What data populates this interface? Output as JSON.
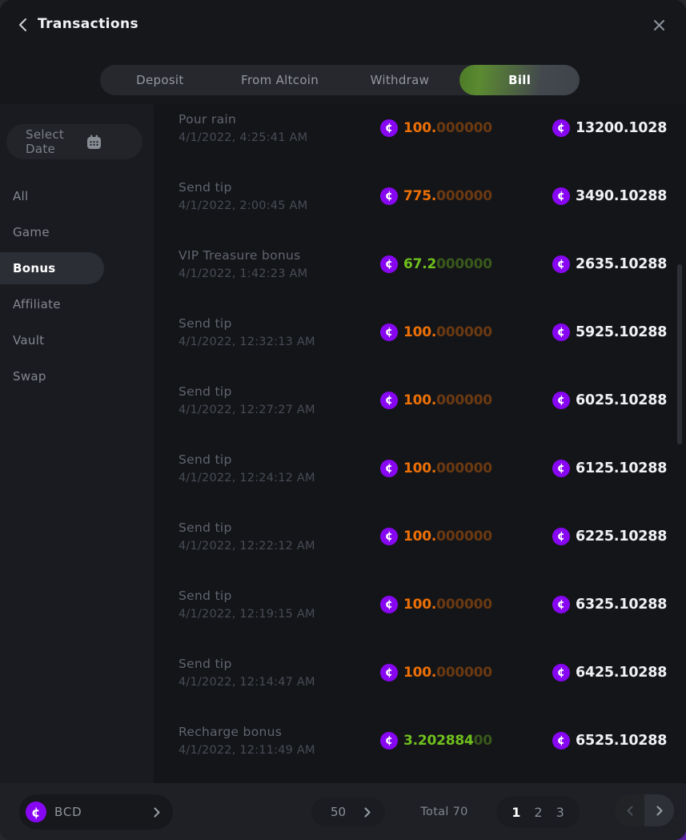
{
  "header": {
    "title": "Transactions"
  },
  "tabs": [
    {
      "label": "Deposit",
      "active": false
    },
    {
      "label": "From Altcoin",
      "active": false
    },
    {
      "label": "Withdraw",
      "active": false
    },
    {
      "label": "Bill",
      "active": true
    }
  ],
  "sidebar": {
    "date_filter": {
      "label": "Select Date",
      "icon": "calendar-icon"
    },
    "items": [
      {
        "label": "All",
        "active": false
      },
      {
        "label": "Game",
        "active": false
      },
      {
        "label": "Bonus",
        "active": true
      },
      {
        "label": "Affiliate",
        "active": false
      },
      {
        "label": "Vault",
        "active": false
      },
      {
        "label": "Swap",
        "active": false
      }
    ]
  },
  "transactions": [
    {
      "title": "Pour rain",
      "datetime": "4/1/2022, 4:25:41 AM",
      "amount_significant": "100.",
      "amount_padding": "000000",
      "amount_color": "orange",
      "balance": "13200.1028",
      "coin_icon": "bcd-coin-icon"
    },
    {
      "title": "Send tip",
      "datetime": "4/1/2022, 2:00:45 AM",
      "amount_significant": "775.",
      "amount_padding": "000000",
      "amount_color": "orange",
      "balance": "3490.10288",
      "coin_icon": "bcd-coin-icon"
    },
    {
      "title": "VIP Treasure bonus",
      "datetime": "4/1/2022, 1:42:23 AM",
      "amount_significant": "67.2",
      "amount_padding": "000000",
      "amount_color": "green",
      "balance": "2635.10288",
      "coin_icon": "bcd-coin-icon"
    },
    {
      "title": "Send tip",
      "datetime": "4/1/2022, 12:32:13 AM",
      "amount_significant": "100.",
      "amount_padding": "000000",
      "amount_color": "orange",
      "balance": "5925.10288",
      "coin_icon": "bcd-coin-icon"
    },
    {
      "title": "Send tip",
      "datetime": "4/1/2022, 12:27:27 AM",
      "amount_significant": "100.",
      "amount_padding": "000000",
      "amount_color": "orange",
      "balance": "6025.10288",
      "coin_icon": "bcd-coin-icon"
    },
    {
      "title": "Send tip",
      "datetime": "4/1/2022, 12:24:12 AM",
      "amount_significant": "100.",
      "amount_padding": "000000",
      "amount_color": "orange",
      "balance": "6125.10288",
      "coin_icon": "bcd-coin-icon"
    },
    {
      "title": "Send tip",
      "datetime": "4/1/2022, 12:22:12 AM",
      "amount_significant": "100.",
      "amount_padding": "000000",
      "amount_color": "orange",
      "balance": "6225.10288",
      "coin_icon": "bcd-coin-icon"
    },
    {
      "title": "Send tip",
      "datetime": "4/1/2022, 12:19:15 AM",
      "amount_significant": "100.",
      "amount_padding": "000000",
      "amount_color": "orange",
      "balance": "6325.10288",
      "coin_icon": "bcd-coin-icon"
    },
    {
      "title": "Send tip",
      "datetime": "4/1/2022, 12:14:47 AM",
      "amount_significant": "100.",
      "amount_padding": "000000",
      "amount_color": "orange",
      "balance": "6425.10288",
      "coin_icon": "bcd-coin-icon"
    },
    {
      "title": "Recharge bonus",
      "datetime": "4/1/2022, 12:11:49 AM",
      "amount_significant": "3.202884",
      "amount_padding": "00",
      "amount_color": "green",
      "balance": "6525.10288",
      "coin_icon": "bcd-coin-icon"
    }
  ],
  "footer": {
    "currency": {
      "code": "BCD",
      "icon": "bcd-coin-icon"
    },
    "page_size": "50",
    "total_label": "Total 70",
    "pages": [
      "1",
      "2",
      "3"
    ],
    "active_page": "1"
  },
  "colors": {
    "orange": "#ee7005",
    "green": "#70c11d",
    "coin": "#8807f2",
    "tab-active-green": "#4c7a27"
  }
}
